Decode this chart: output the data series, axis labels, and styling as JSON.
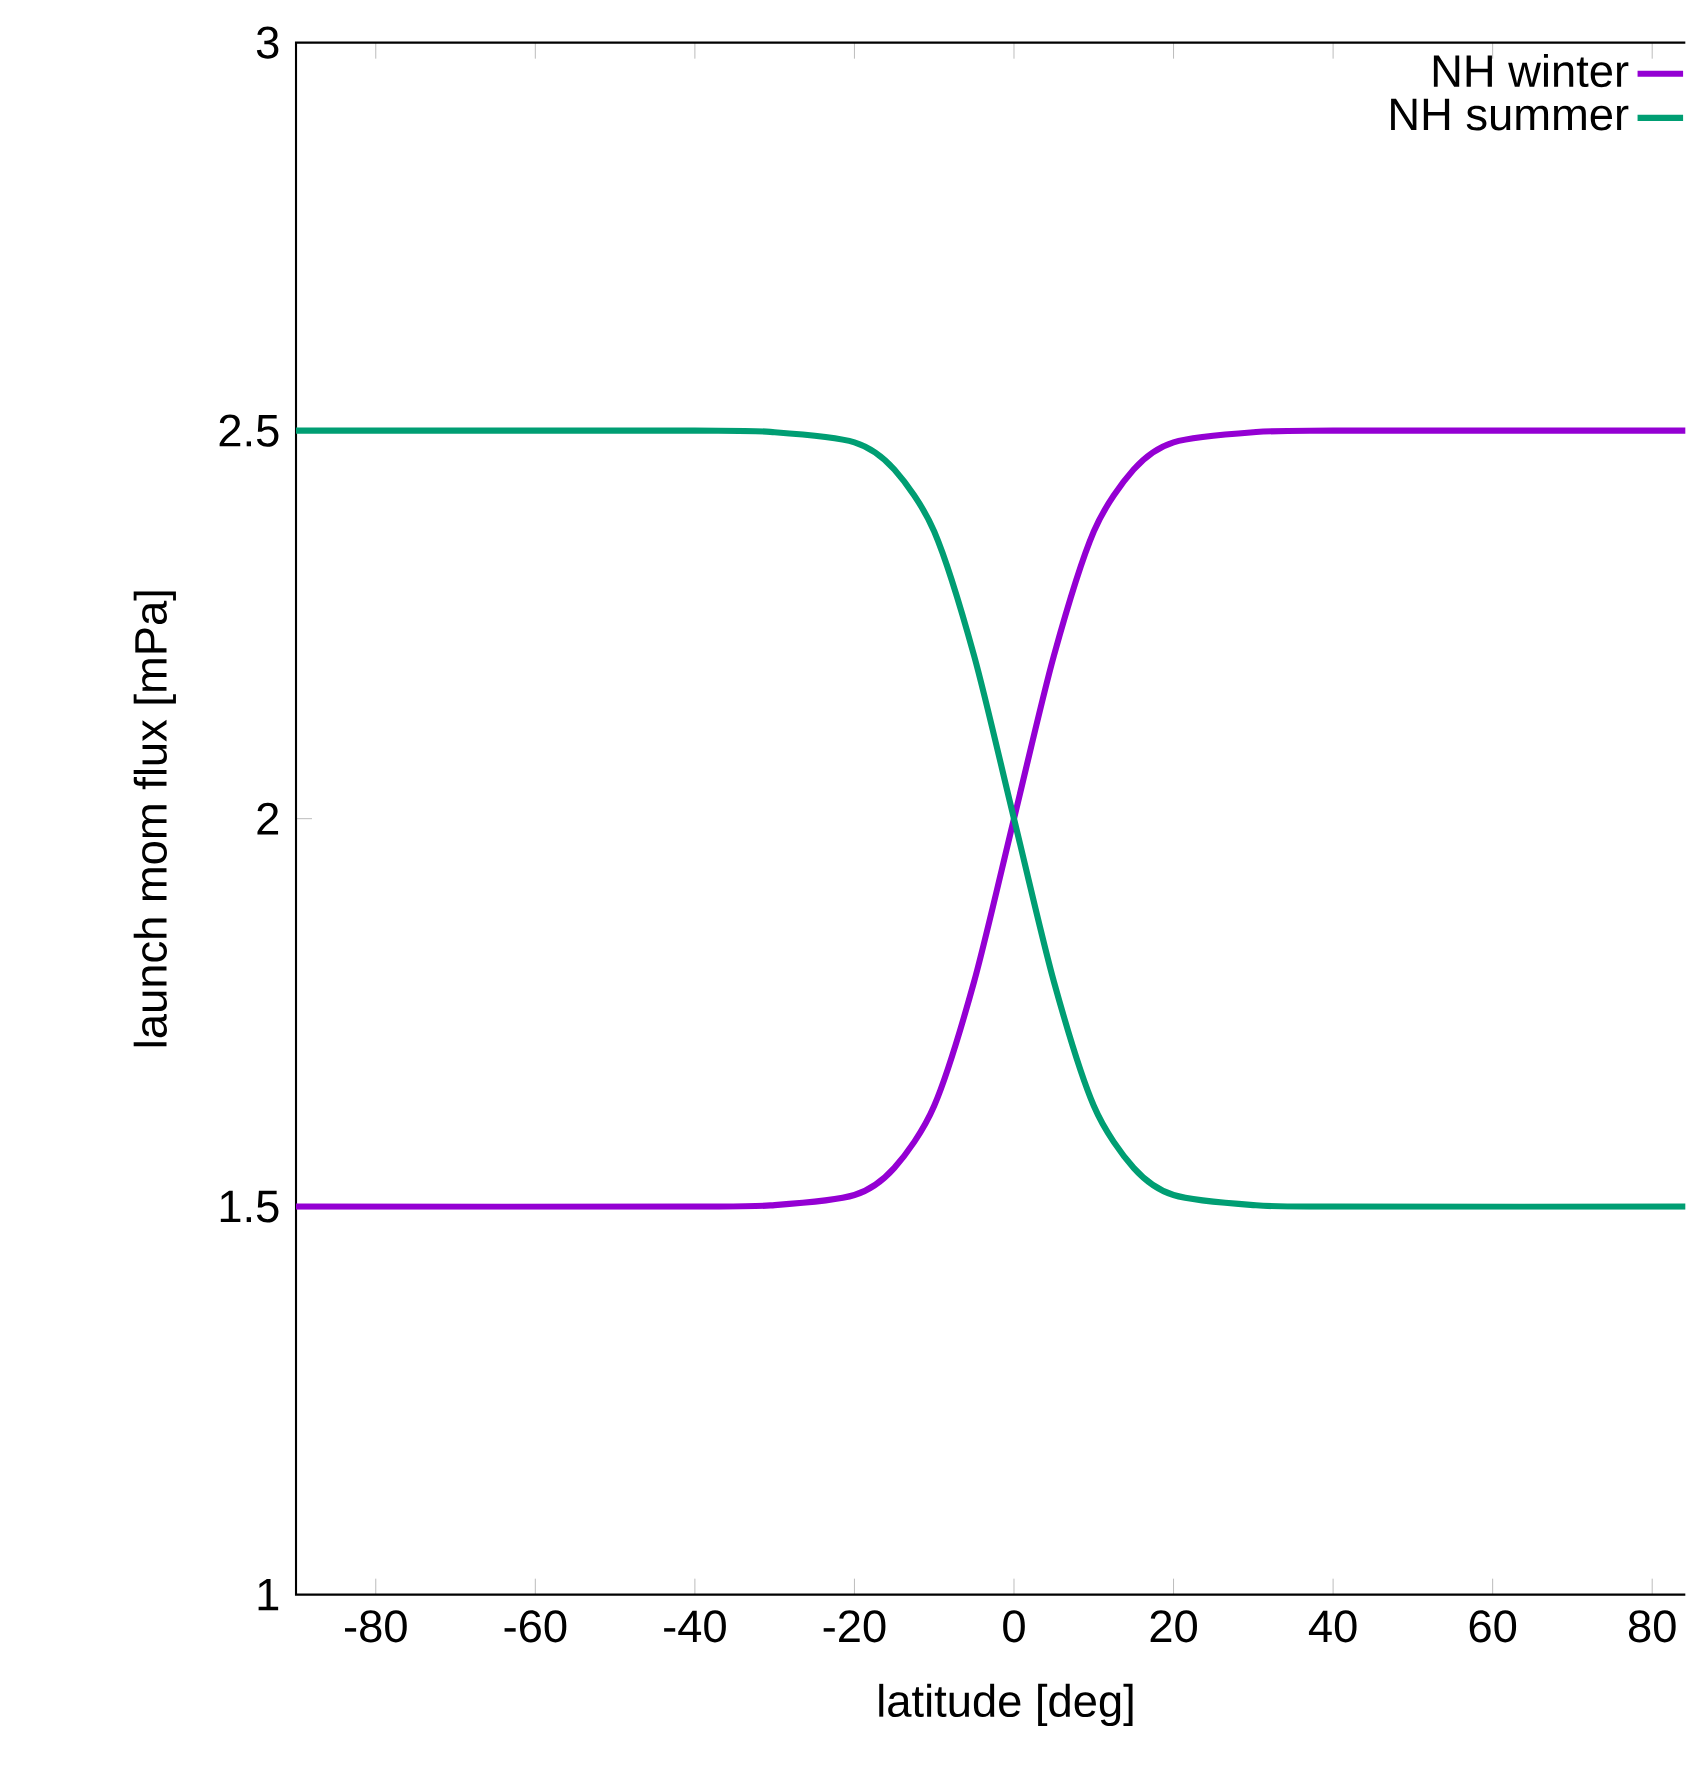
{
  "chart_data": {
    "type": "line",
    "xlabel": "latitude [deg]",
    "ylabel": "launch mom flux [mPa]",
    "x": [
      -90,
      -40,
      -30,
      -20,
      -15,
      -10,
      -5,
      0,
      5,
      10,
      15,
      20,
      30,
      40,
      88
    ],
    "series": [
      {
        "name": "NH winter",
        "color": "#9400d3",
        "values": [
          1.5,
          1.5,
          1.502,
          1.515,
          1.55,
          1.63,
          1.79,
          2.0,
          2.21,
          2.37,
          2.45,
          2.485,
          2.498,
          2.5,
          2.5
        ]
      },
      {
        "name": "NH summer",
        "color": "#009e73",
        "values": [
          2.5,
          2.5,
          2.498,
          2.485,
          2.45,
          2.37,
          2.21,
          2.0,
          1.79,
          1.63,
          1.55,
          1.515,
          1.502,
          1.5,
          1.5
        ]
      }
    ],
    "xlim": [
      -90,
      88
    ],
    "ylim": [
      1,
      3
    ],
    "xticks": [
      -80,
      -60,
      -40,
      -20,
      0,
      20,
      40,
      60,
      80
    ],
    "yticks": [
      1,
      1.5,
      2,
      2.5,
      3
    ],
    "legend": "top right",
    "grid": false,
    "marker": "none",
    "line_style": "solid"
  }
}
